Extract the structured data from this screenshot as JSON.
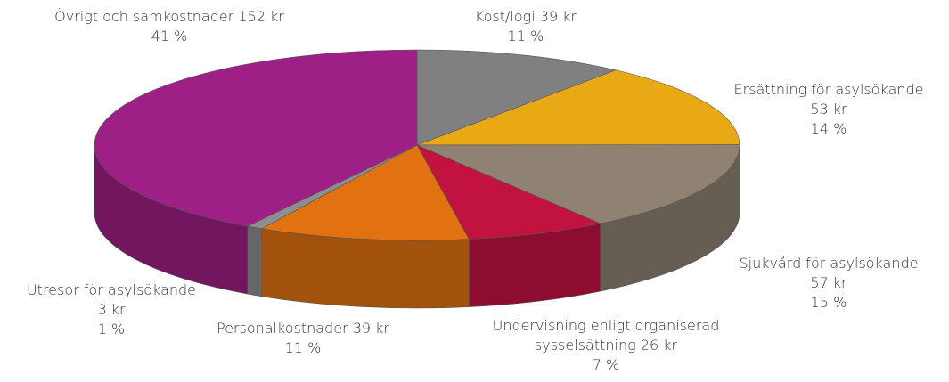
{
  "chart_data": {
    "type": "pie3d",
    "categories": [
      "Kost/logi",
      "Ersättning för asylsökande",
      "Sjukvård för asylsökande",
      "Undervisning enligt organiserad sysselsättning",
      "Personalkostnader",
      "Utresor för asylsökande",
      "Övrigt och samkostnader"
    ],
    "values": [
      39,
      53,
      57,
      26,
      39,
      3,
      152
    ],
    "value_labels": [
      "39 kr",
      "53 kr",
      "57 kr",
      "26 kr",
      "39 kr",
      "3 kr",
      "152 kr"
    ],
    "percent_labels": [
      "11 %",
      "14 %",
      "15 %",
      "7 %",
      "11 %",
      "1 %",
      "41 %"
    ],
    "colors": [
      "#808080",
      "#e8a915",
      "#8f8273",
      "#c2123f",
      "#e1720f",
      "#8e8e8e",
      "#9e1f86"
    ]
  }
}
